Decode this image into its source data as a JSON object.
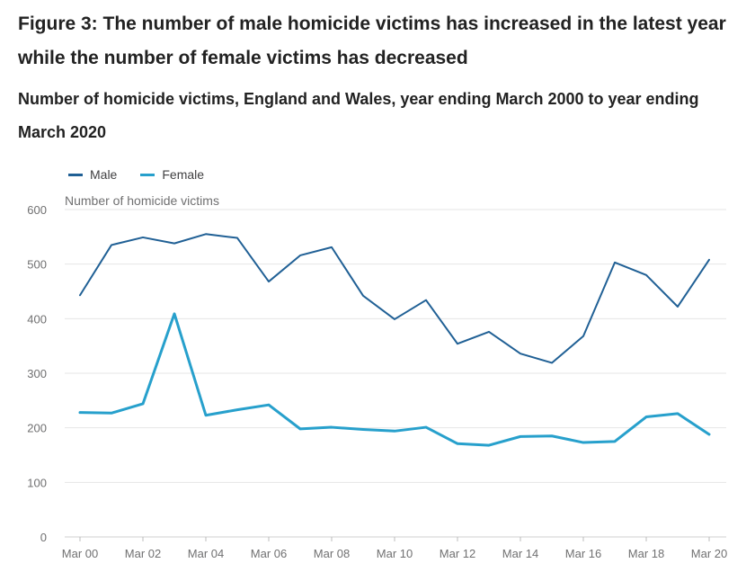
{
  "figure": {
    "title": "Figure 3: The number of male homicide victims has increased in the latest year while the number of female victims has decreased",
    "subtitle": "Number of homicide victims, England and Wales, year ending March 2000 to year ending March 2020"
  },
  "colors": {
    "male": "#206095",
    "female": "#27a0cc",
    "grid": "#e6e6e6",
    "axis_text": "#707071"
  },
  "chart_data": {
    "type": "line",
    "title": "Number of homicide victims, England and Wales, year ending March 2000 to year ending March 2020",
    "xlabel": "",
    "ylabel": "Number of homicide victims",
    "ylim": [
      0,
      600
    ],
    "yticks": [
      0,
      100,
      200,
      300,
      400,
      500,
      600
    ],
    "grid": true,
    "legend_position": "top-left",
    "categories": [
      "Mar 00",
      "Mar 01",
      "Mar 02",
      "Mar 03",
      "Mar 04",
      "Mar 05",
      "Mar 06",
      "Mar 07",
      "Mar 08",
      "Mar 09",
      "Mar 10",
      "Mar 11",
      "Mar 12",
      "Mar 13",
      "Mar 14",
      "Mar 15",
      "Mar 16",
      "Mar 17",
      "Mar 18",
      "Mar 19",
      "Mar 20"
    ],
    "tick_labels": [
      "Mar 00",
      "Mar 02",
      "Mar 04",
      "Mar 06",
      "Mar 08",
      "Mar 10",
      "Mar 12",
      "Mar 14",
      "Mar 16",
      "Mar 18",
      "Mar 20"
    ],
    "series": [
      {
        "name": "Male",
        "color": "#206095",
        "values": [
          443,
          535,
          549,
          538,
          555,
          548,
          468,
          516,
          531,
          442,
          399,
          434,
          354,
          376,
          336,
          319,
          368,
          503,
          480,
          422,
          508
        ]
      },
      {
        "name": "Female",
        "color": "#27a0cc",
        "values": [
          228,
          227,
          244,
          409,
          223,
          233,
          242,
          198,
          201,
          197,
          194,
          201,
          171,
          168,
          184,
          185,
          173,
          175,
          220,
          226,
          188
        ]
      }
    ]
  }
}
